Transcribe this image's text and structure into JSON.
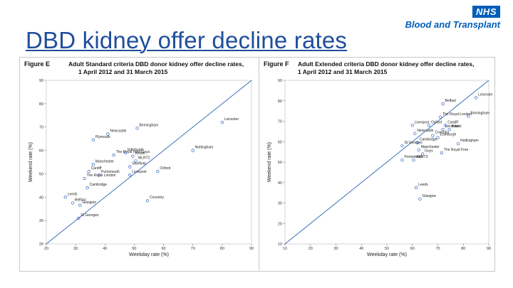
{
  "header": {
    "title": "DBD kidney offer decline rates",
    "logo_badge": "NHS",
    "logo_org": "Blood and Transplant"
  },
  "colors": {
    "title": "#1f4e9c",
    "nhs_blue": "#005eb8",
    "points": "#3060c0",
    "line": "#2a62b8"
  },
  "chart_data": [
    {
      "type": "scatter",
      "figure_label": "Figure E",
      "title": "Adult Standard criteria DBD donor kidney offer decline rates,",
      "subtitle": "1 April 2012 and 31 March 2015",
      "xlabel": "Weekday rate (%)",
      "ylabel": "Weekend rate (%)",
      "xlim": [
        20,
        90
      ],
      "ylim": [
        20,
        90
      ],
      "xticks": [
        20,
        30,
        40,
        50,
        60,
        70,
        80,
        90
      ],
      "yticks": [
        20,
        30,
        40,
        50,
        60,
        70,
        80,
        90
      ],
      "reference_line": "y = x",
      "points": [
        {
          "label": "Leicester",
          "x": 80.0,
          "y": 72.0
        },
        {
          "label": "Birmingham",
          "x": 51.0,
          "y": 69.5
        },
        {
          "label": "Newcastle",
          "x": 41.0,
          "y": 67.0
        },
        {
          "label": "Plymouth",
          "x": 36.0,
          "y": 64.5
        },
        {
          "label": "Edinburgh",
          "x": 47.0,
          "y": 59.0
        },
        {
          "label": "Bristol",
          "x": 49.5,
          "y": 57.5
        },
        {
          "label": "WLRTC",
          "x": 50.5,
          "y": 55.5
        },
        {
          "label": "Nottingham",
          "x": 70.0,
          "y": 60.0
        },
        {
          "label": "The Royal Free Guys",
          "x": 43.0,
          "y": 58.0
        },
        {
          "label": "Manchester",
          "x": 36.0,
          "y": 54.0
        },
        {
          "label": "Cardiff",
          "x": 34.5,
          "y": 51.0
        },
        {
          "label": "Sheffield",
          "x": 48.5,
          "y": 53.0
        },
        {
          "label": "Oxford",
          "x": 58.0,
          "y": 51.0
        },
        {
          "label": "Portsmouth",
          "x": 38.0,
          "y": 49.5
        },
        {
          "label": "Liverpool",
          "x": 48.5,
          "y": 49.5
        },
        {
          "label": "The Royal London",
          "x": 33.0,
          "y": 48.0
        },
        {
          "label": "Cambridge",
          "x": 34.0,
          "y": 44.0
        },
        {
          "label": "Leeds",
          "x": 26.5,
          "y": 40.0
        },
        {
          "label": "Belfast",
          "x": 29.0,
          "y": 37.5
        },
        {
          "label": "Coventry",
          "x": 54.5,
          "y": 38.5
        },
        {
          "label": "Glasgow",
          "x": 31.5,
          "y": 36.5
        },
        {
          "label": "St Georges",
          "x": 31.0,
          "y": 31.0
        }
      ]
    },
    {
      "type": "scatter",
      "figure_label": "Figure F",
      "title": "Adult Extended criteria DBD donor kidney offer decline rates,",
      "subtitle": "1 April 2012 and 31 March 2015",
      "xlabel": "Weekday rate (%)",
      "ylabel": "Weekend rate (%)",
      "xlim": [
        10,
        90
      ],
      "ylim": [
        10,
        90
      ],
      "xticks": [
        10,
        20,
        30,
        40,
        50,
        60,
        70,
        80,
        90
      ],
      "yticks": [
        10,
        20,
        30,
        40,
        50,
        60,
        70,
        80,
        90
      ],
      "reference_line": "y = x",
      "points": [
        {
          "label": "Leicester",
          "x": 85.0,
          "y": 81.5
        },
        {
          "label": "Belfast",
          "x": 72.0,
          "y": 78.5
        },
        {
          "label": "Birmingham",
          "x": 82.0,
          "y": 72.5
        },
        {
          "label": "The Royal London",
          "x": 71.0,
          "y": 72.0
        },
        {
          "label": "Liverpool",
          "x": 60.0,
          "y": 68.0
        },
        {
          "label": "Oxford",
          "x": 66.5,
          "y": 68.0
        },
        {
          "label": "Cardiff",
          "x": 73.0,
          "y": 68.0
        },
        {
          "label": "Leicester",
          "x": 72.0,
          "y": 66.0
        },
        {
          "label": "Bristol",
          "x": 74.5,
          "y": 66.0
        },
        {
          "label": "Newcastle",
          "x": 61.0,
          "y": 64.0
        },
        {
          "label": "Coventry",
          "x": 68.0,
          "y": 63.0
        },
        {
          "label": "Edinburgh",
          "x": 70.0,
          "y": 62.0
        },
        {
          "label": "Cambridge",
          "x": 62.0,
          "y": 59.5
        },
        {
          "label": "Nottingham",
          "x": 78.0,
          "y": 59.0
        },
        {
          "label": "St Georges",
          "x": 56.0,
          "y": 58.0
        },
        {
          "label": "Manchester",
          "x": 62.5,
          "y": 56.0
        },
        {
          "label": "Guys",
          "x": 64.0,
          "y": 54.0
        },
        {
          "label": "The Royal Free",
          "x": 71.5,
          "y": 54.5
        },
        {
          "label": "Portsmouth",
          "x": 56.0,
          "y": 51.0
        },
        {
          "label": "WLRTC",
          "x": 60.5,
          "y": 51.0
        },
        {
          "label": "Leeds",
          "x": 61.5,
          "y": 37.5
        },
        {
          "label": "Glasgow",
          "x": 63.0,
          "y": 32.0
        }
      ]
    }
  ]
}
